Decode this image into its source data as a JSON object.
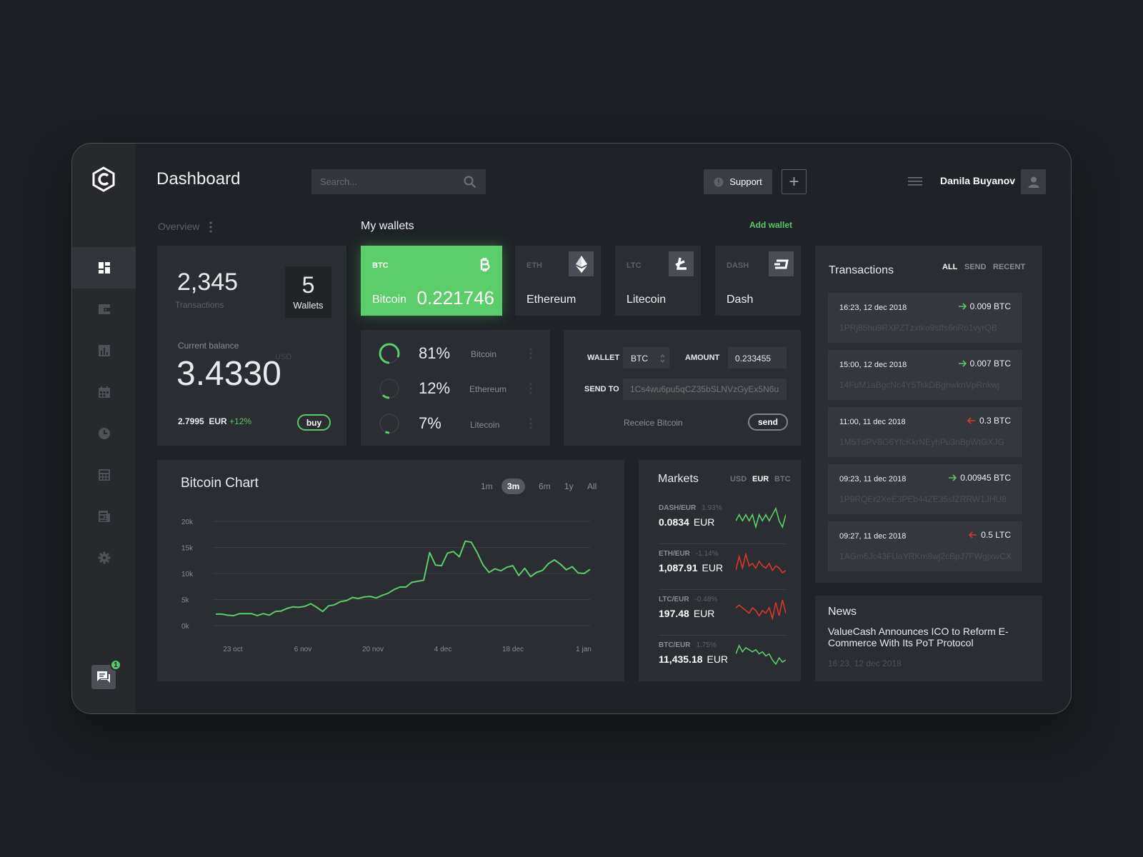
{
  "header": {
    "title": "Dashboard",
    "search_placeholder": "Search...",
    "support_label": "Support",
    "user_name": "Danila Buyanov"
  },
  "overview": {
    "label": "Overview",
    "transactions_count": "2,345",
    "transactions_label": "Transactions",
    "wallets_count": "5",
    "wallets_label": "Wallets",
    "balance_label": "Current balance",
    "balance_value": "3.4330",
    "balance_unit": "USD",
    "rate_value": "2.7995",
    "rate_currency": "EUR",
    "rate_change": "+12%",
    "buy_label": "buy"
  },
  "wallets": {
    "title": "My wallets",
    "add_label": "Add wallet",
    "items": [
      {
        "code": "BTC",
        "name": "Bitcoin",
        "amount": "0.221746",
        "icon": "bitcoin-icon"
      },
      {
        "code": "ETH",
        "name": "Ethereum",
        "icon": "ethereum-icon"
      },
      {
        "code": "LTC",
        "name": "Litecoin",
        "icon": "litecoin-icon"
      },
      {
        "code": "DASH",
        "name": "Dash",
        "icon": "dash-icon"
      }
    ]
  },
  "allocation": [
    {
      "percent": "81%",
      "name": "Bitcoin",
      "fraction": 0.81
    },
    {
      "percent": "12%",
      "name": "Ethereum",
      "fraction": 0.12
    },
    {
      "percent": "7%",
      "name": "Litecoin",
      "fraction": 0.07
    }
  ],
  "send": {
    "wallet_label": "WALLET",
    "wallet_value": "BTC",
    "amount_label": "AMOUNT",
    "amount_value": "0.233455",
    "sendto_label": "SEND TO",
    "sendto_placeholder": "1Cs4wu6pu5qCZ35bSLNVzGyEx5N6u",
    "receive_label": "Receice Bitcoin",
    "send_label": "send"
  },
  "transactions": {
    "title": "Transactions",
    "filters": [
      "ALL",
      "SEND",
      "RECENT"
    ],
    "items": [
      {
        "date": "16:23, 12 dec 2018",
        "amount": "0.009 BTC",
        "direction": "in",
        "address": "1PRj85hu9RXPZTzxtko9stfs6nRo1vyrQB"
      },
      {
        "date": "15:00, 12 dec 2018",
        "amount": "0.007 BTC",
        "direction": "in",
        "address": "14FuM1aBgcNc4Y5TskDBghwknVpRnkwj"
      },
      {
        "date": "11:00, 11 dec 2018",
        "amount": "0.3 BTC",
        "direction": "out",
        "address": "1M5TdPV8G6YfcKkrNEyhPu3nBpWtGXJG"
      },
      {
        "date": "09:23, 11 dec 2018",
        "amount": "0.00945 BTC",
        "direction": "in",
        "address": "1P9RQEr2XeE3PEb44ZE35sfZRRW1JHU8"
      },
      {
        "date": "09:27, 11 dec 2018",
        "amount": "0.5 LTC",
        "direction": "out",
        "address": "1AGm6Jc43FUaYRKm8wj2cBpJ7FWgjxwCX"
      }
    ]
  },
  "chart": {
    "title": "Bitcoin Chart",
    "ranges": [
      "1m",
      "3m",
      "6m",
      "1y",
      "All"
    ],
    "active_range": "3m"
  },
  "chart_data": {
    "type": "line",
    "title": "Bitcoin Chart",
    "x_tick_labels": [
      "23 oct",
      "6 nov",
      "20 nov",
      "4 dec",
      "18 dec",
      "1 jan"
    ],
    "y_tick_labels": [
      "20k",
      "15k",
      "10k",
      "5k",
      "0k"
    ],
    "ylim": [
      0,
      20000
    ],
    "grid": true,
    "series": [
      {
        "values": [
          2200,
          2200,
          2000,
          1900,
          2300,
          2300,
          2300,
          1900,
          2300,
          2000,
          2700,
          2800,
          3300,
          3600,
          3500,
          3700,
          4200,
          3500,
          2700,
          3800,
          4000,
          4600,
          4800,
          5400,
          5200,
          5500,
          5600,
          5300,
          5800,
          6200,
          6900,
          7400,
          7400,
          8300,
          8500,
          8700,
          14000,
          11600,
          11500,
          13900,
          14200,
          13200,
          16200,
          16000,
          14000,
          11600,
          10200,
          10900,
          10500,
          11200,
          11500,
          9600,
          11000,
          9400,
          10200,
          10600,
          11900,
          12600,
          11800,
          10700,
          11300,
          10100,
          10000,
          10800
        ]
      }
    ]
  },
  "markets": {
    "title": "Markets",
    "currencies": [
      "USD",
      "EUR",
      "BTC"
    ],
    "active_currency": "EUR",
    "items": [
      {
        "pair": "DASH/EUR",
        "change": "1.93%",
        "value": "0.0834",
        "currency": "EUR",
        "trend": "up",
        "spark": [
          5,
          6,
          5,
          6,
          5,
          6,
          4,
          6,
          5,
          6,
          5,
          6,
          7,
          5,
          4,
          6
        ]
      },
      {
        "pair": "ETH/EUR",
        "change": "-1.14%",
        "value": "1,087.91",
        "currency": "EUR",
        "trend": "down",
        "spark": [
          3,
          9,
          4,
          10,
          5,
          6,
          4,
          7,
          5,
          4,
          6,
          3,
          5,
          4,
          2,
          3
        ]
      },
      {
        "pair": "LTC/EUR",
        "change": "-0.48%",
        "value": "197.48",
        "currency": "EUR",
        "trend": "down",
        "spark": [
          6,
          7,
          6,
          5,
          4,
          6,
          5,
          3,
          5,
          4,
          6,
          2,
          8,
          3,
          9,
          4
        ]
      },
      {
        "pair": "BTC/EUR",
        "change": "1.75%",
        "value": "11,435.18",
        "currency": "EUR",
        "trend": "up",
        "spark": [
          6,
          10,
          7,
          9,
          8,
          7,
          8,
          6,
          7,
          5,
          6,
          3,
          1,
          4,
          2,
          3
        ]
      }
    ]
  },
  "news": {
    "title": "News",
    "headline": "ValueCash Announces ICO to Reform E-Commerce With Its PoT Protocol",
    "date": "16:23, 12 dec 2018"
  },
  "sidebar": {
    "items": [
      "dashboard-icon",
      "wallet-icon",
      "chart-icon",
      "calendar-icon",
      "clock-icon",
      "calculator-icon",
      "news-icon",
      "gear-icon"
    ],
    "chat_badge": "1"
  },
  "colors": {
    "accent": "#5ccd6b",
    "negative": "#d7372f",
    "background": "#1f2226",
    "card": "#2a2d31"
  }
}
